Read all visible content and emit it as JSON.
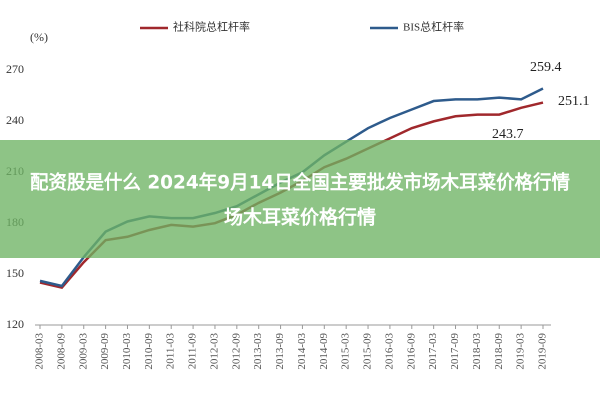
{
  "chart_data": {
    "type": "line",
    "unit_label": "(%)",
    "categories": [
      "2008-03",
      "2008-09",
      "2009-03",
      "2009-09",
      "2010-03",
      "2010-09",
      "2011-03",
      "2011-09",
      "2012-03",
      "2012-09",
      "2013-03",
      "2013-09",
      "2014-03",
      "2014-09",
      "2015-03",
      "2015-09",
      "2016-03",
      "2016-09",
      "2017-03",
      "2017-09",
      "2018-03",
      "2018-09",
      "2019-03",
      "2019-09"
    ],
    "series": [
      {
        "name": "社科院总杠杆率",
        "color": "#a0282c",
        "values": [
          145,
          142,
          157,
          170,
          172,
          176,
          179,
          178,
          180,
          185,
          192,
          198,
          205,
          213,
          218,
          224,
          230,
          236,
          240,
          243,
          244,
          244,
          248,
          251.1
        ]
      },
      {
        "name": "BIS总杠杆率",
        "color": "#2e5b8c",
        "values": [
          146,
          143,
          160,
          175,
          181,
          184,
          183,
          183,
          186,
          190,
          197,
          204,
          210,
          220,
          228,
          236,
          242,
          247,
          252,
          253,
          253,
          254,
          253,
          259.4
        ]
      }
    ],
    "annotations": [
      "259.4",
      "251.1",
      "243.7"
    ],
    "ylim": [
      120,
      275
    ],
    "yticks": [
      120,
      150,
      180,
      210,
      240,
      270
    ],
    "grid": false,
    "legend": "top"
  },
  "banner": {
    "lines": [
      "配资股是什么 2024年9月14日全国主要批发市场木耳菜价格行情",
      "场木耳菜价格行情"
    ]
  }
}
